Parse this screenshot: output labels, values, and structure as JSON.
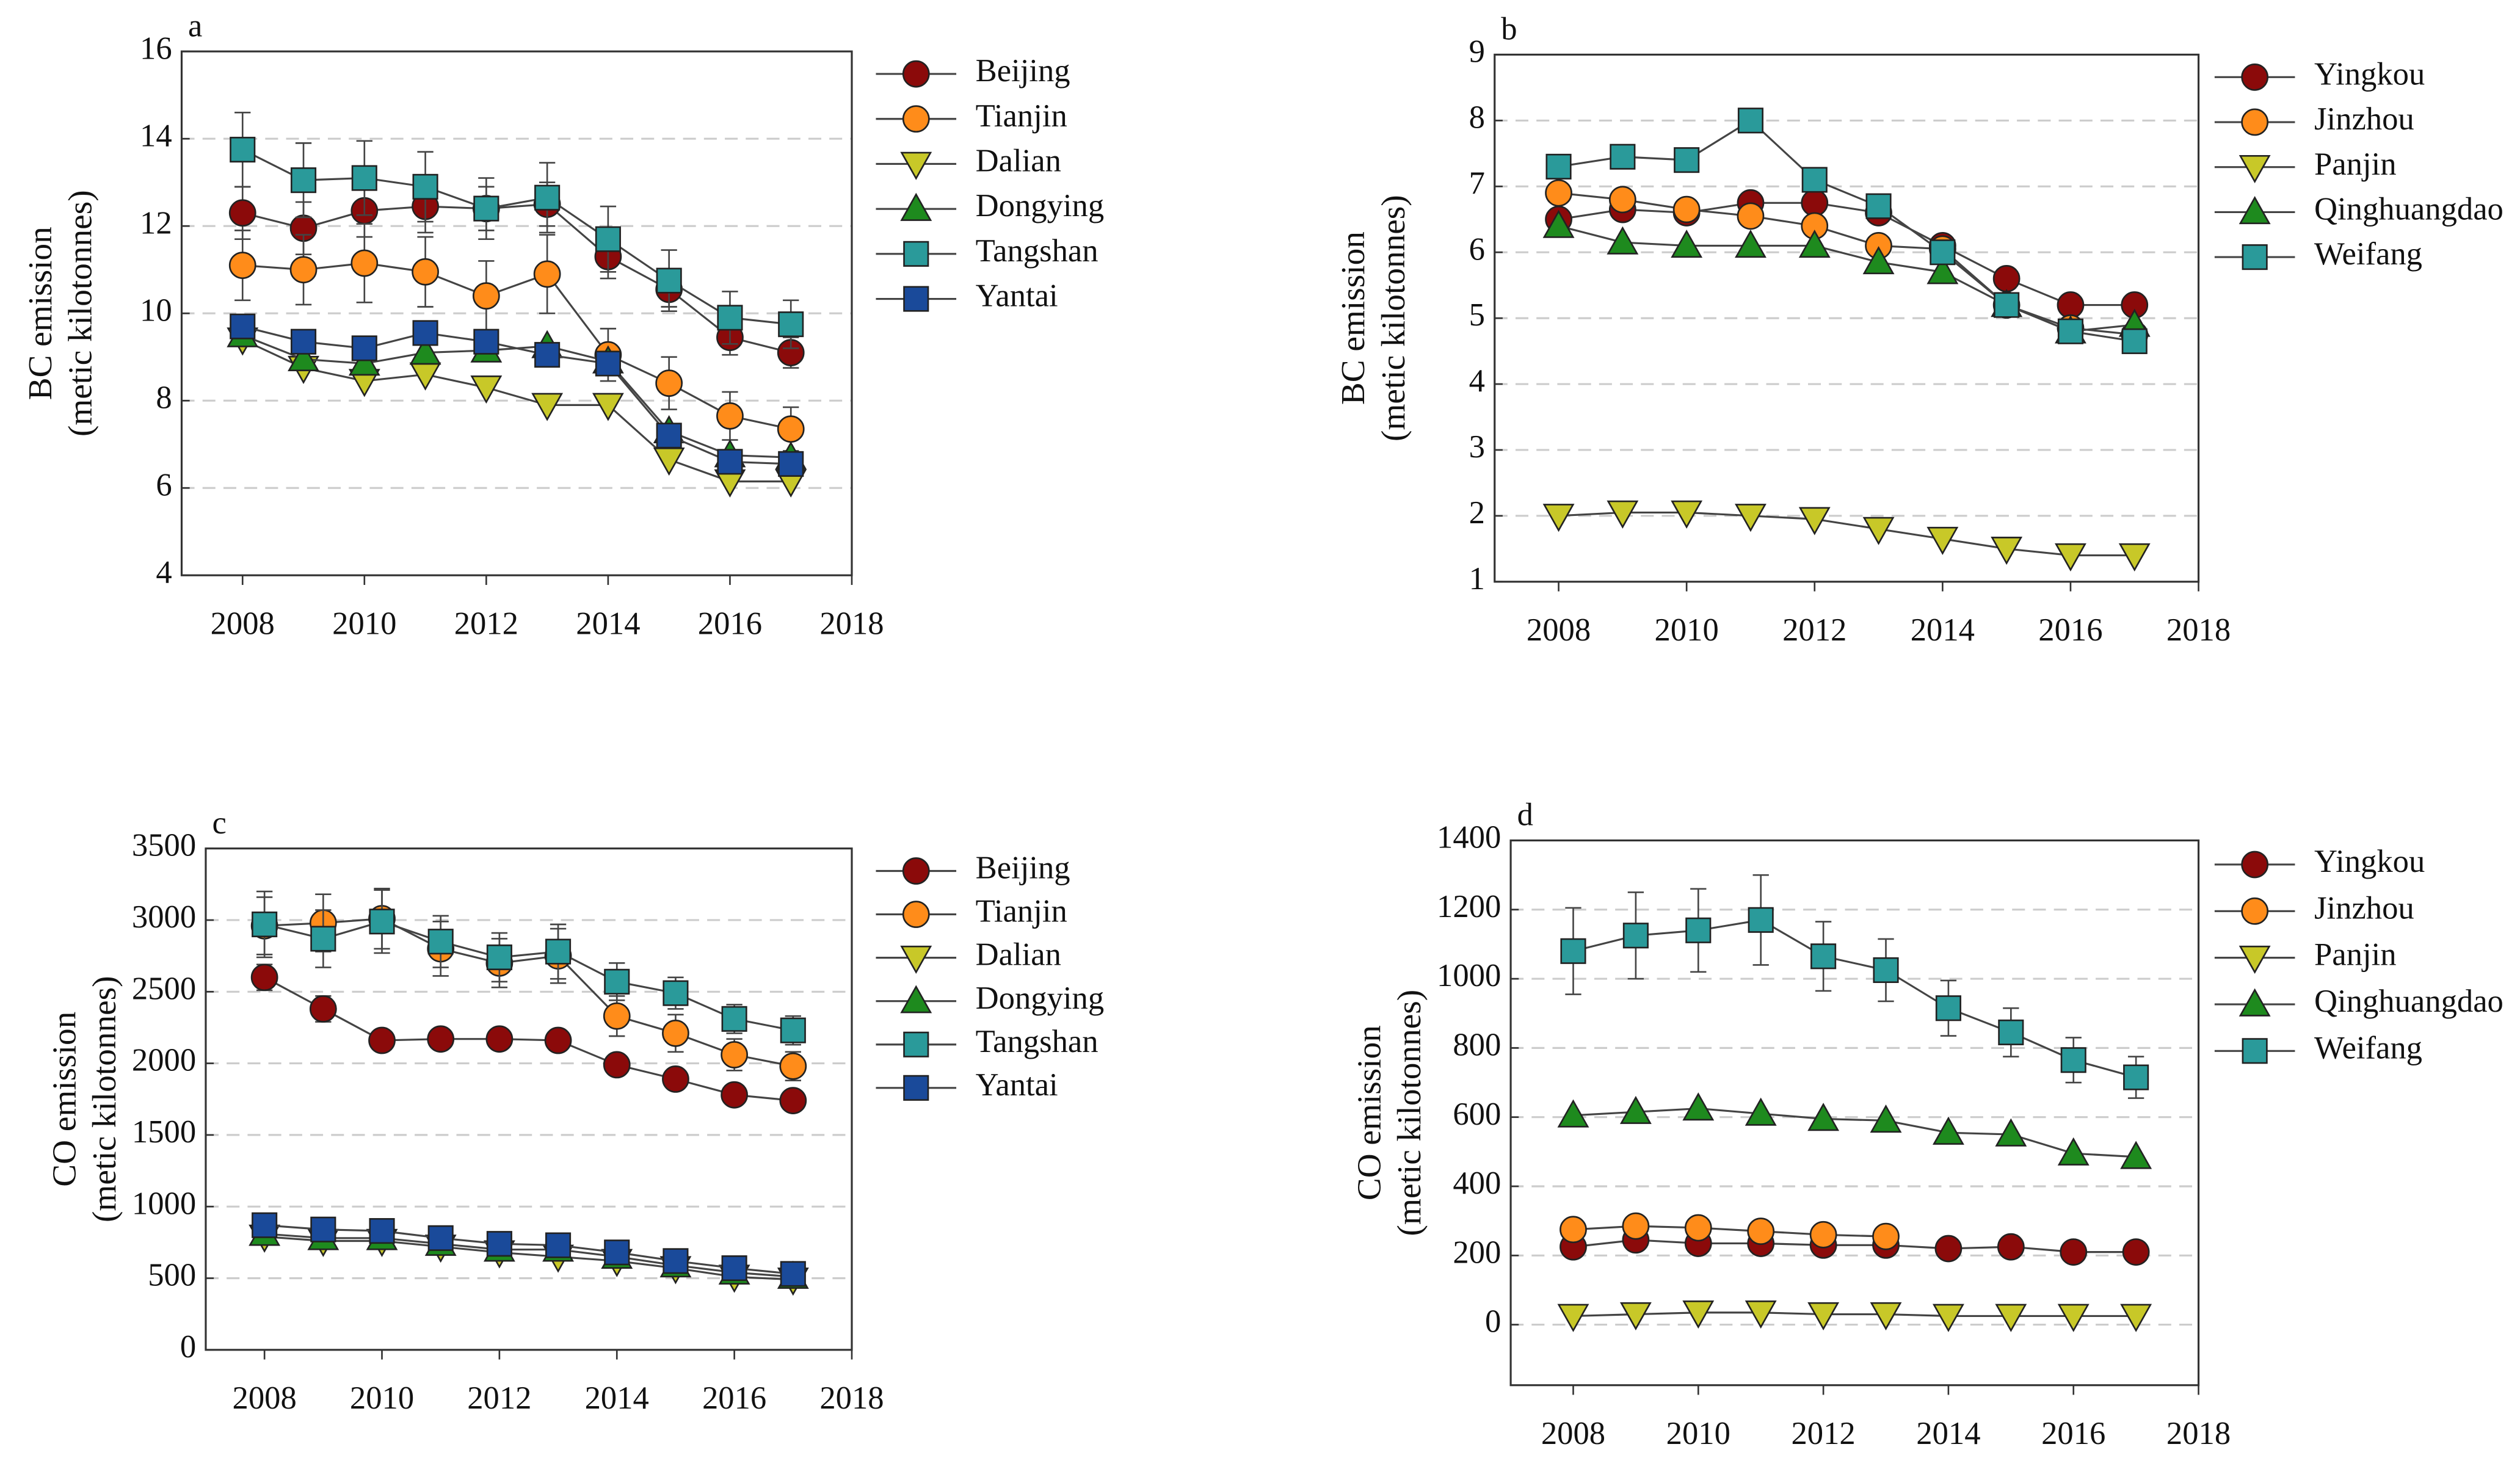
{
  "chart_data": [
    {
      "type": "line",
      "panel": "a",
      "ylabel": [
        "BC emission",
        "(metic kilotonnes)"
      ],
      "x": [
        2008,
        2009,
        2010,
        2011,
        2012,
        2013,
        2014,
        2015,
        2016,
        2017
      ],
      "xlim": [
        2007,
        2018
      ],
      "xticks": [
        2008,
        2010,
        2012,
        2014,
        2016,
        2018
      ],
      "ylim": [
        4,
        16
      ],
      "yticks": [
        4,
        6,
        8,
        10,
        12,
        14,
        16
      ],
      "grid": true,
      "legend": "right",
      "series": [
        {
          "name": "Beijing",
          "color": "#8b0a0a",
          "marker": "circle",
          "values": [
            12.3,
            11.95,
            12.35,
            12.45,
            12.4,
            12.5,
            11.3,
            10.55,
            9.45,
            9.1
          ],
          "errors": [
            0.6,
            0.6,
            0.6,
            0.6,
            0.5,
            0.5,
            0.5,
            0.4,
            0.4,
            0.35
          ]
        },
        {
          "name": "Tianjin",
          "color": "#ff8c1a",
          "marker": "circle",
          "values": [
            11.1,
            11.0,
            11.15,
            10.95,
            10.4,
            10.9,
            9.05,
            8.4,
            7.65,
            7.35
          ],
          "errors": [
            0.8,
            0.8,
            0.9,
            0.8,
            0.8,
            0.9,
            0.6,
            0.6,
            0.55,
            0.5
          ]
        },
        {
          "name": "Dalian",
          "color": "#c8c828",
          "marker": "tri-down",
          "values": [
            9.4,
            8.75,
            8.45,
            8.6,
            8.3,
            7.9,
            7.9,
            6.65,
            6.15,
            6.15
          ]
        },
        {
          "name": "Dongying",
          "color": "#1e8a1e",
          "marker": "tri-up",
          "values": [
            9.5,
            8.95,
            8.85,
            9.1,
            9.15,
            9.25,
            8.9,
            7.3,
            6.75,
            6.7
          ]
        },
        {
          "name": "Tangshan",
          "color": "#2a9a9a",
          "marker": "square",
          "values": [
            13.75,
            13.05,
            13.1,
            12.9,
            12.4,
            12.65,
            11.7,
            10.75,
            9.9,
            9.75
          ],
          "errors": [
            0.85,
            0.85,
            0.85,
            0.8,
            0.7,
            0.8,
            0.75,
            0.7,
            0.6,
            0.55
          ]
        },
        {
          "name": "Yantai",
          "color": "#1a4a9a",
          "marker": "square",
          "values": [
            9.7,
            9.35,
            9.2,
            9.55,
            9.35,
            9.05,
            8.85,
            7.2,
            6.6,
            6.55
          ]
        }
      ]
    },
    {
      "type": "line",
      "panel": "b",
      "ylabel": [
        "BC emission",
        "(metic kilotonnes)"
      ],
      "x": [
        2008,
        2009,
        2010,
        2011,
        2012,
        2013,
        2014,
        2015,
        2016,
        2017
      ],
      "xlim": [
        2007,
        2018
      ],
      "xticks": [
        2008,
        2010,
        2012,
        2014,
        2016,
        2018
      ],
      "ylim": [
        1,
        9
      ],
      "yticks": [
        1,
        2,
        3,
        4,
        5,
        6,
        7,
        8,
        9
      ],
      "grid": true,
      "legend": "right",
      "series": [
        {
          "name": "Yingkou",
          "color": "#8b0a0a",
          "marker": "circle",
          "values": [
            6.5,
            6.65,
            6.6,
            6.75,
            6.75,
            6.6,
            6.1,
            5.6,
            5.2,
            5.2
          ]
        },
        {
          "name": "Jinzhou",
          "color": "#ff8c1a",
          "marker": "circle",
          "values": [
            6.9,
            6.8,
            6.65,
            6.55,
            6.4,
            6.1,
            6.05,
            5.2,
            4.85,
            4.75
          ]
        },
        {
          "name": "Panjin",
          "color": "#c8c828",
          "marker": "tri-down",
          "values": [
            2.0,
            2.05,
            2.05,
            2.0,
            1.95,
            1.8,
            1.65,
            1.5,
            1.4,
            1.4
          ]
        },
        {
          "name": "Qinghuangdao",
          "color": "#1e8a1e",
          "marker": "tri-up",
          "values": [
            6.4,
            6.15,
            6.1,
            6.1,
            6.1,
            5.85,
            5.7,
            5.2,
            4.8,
            4.9
          ]
        },
        {
          "name": "Weifang",
          "color": "#2a9a9a",
          "marker": "square",
          "values": [
            7.3,
            7.45,
            7.4,
            8.0,
            7.1,
            6.7,
            6.0,
            5.2,
            4.8,
            4.65
          ]
        }
      ]
    },
    {
      "type": "line",
      "panel": "c",
      "ylabel": [
        "CO emission",
        "(metic kilotonnes)"
      ],
      "x": [
        2008,
        2009,
        2010,
        2011,
        2012,
        2013,
        2014,
        2015,
        2016,
        2017
      ],
      "xlim": [
        2007,
        2018
      ],
      "xticks": [
        2008,
        2010,
        2012,
        2014,
        2016,
        2018
      ],
      "ylim": [
        0,
        3500
      ],
      "yticks": [
        0,
        500,
        1000,
        1500,
        2000,
        2500,
        3000,
        3500
      ],
      "grid": true,
      "legend": "right",
      "series": [
        {
          "name": "Beijing",
          "color": "#8b0a0a",
          "marker": "circle",
          "values": [
            2600,
            2380,
            2160,
            2170,
            2170,
            2160,
            1990,
            1890,
            1780,
            1740
          ],
          "errors": [
            90,
            90,
            70,
            70,
            70,
            70,
            60,
            60,
            60,
            60
          ]
        },
        {
          "name": "Tianjin",
          "color": "#ff8c1a",
          "marker": "circle",
          "values": [
            2960,
            2980,
            3010,
            2800,
            2700,
            2750,
            2330,
            2210,
            2060,
            1980
          ],
          "errors": [
            200,
            200,
            210,
            190,
            170,
            190,
            140,
            130,
            110,
            100
          ]
        },
        {
          "name": "Dalian",
          "color": "#c8c828",
          "marker": "tri-down",
          "values": [
            790,
            760,
            760,
            720,
            680,
            650,
            620,
            570,
            510,
            490
          ]
        },
        {
          "name": "Dongying",
          "color": "#1e8a1e",
          "marker": "tri-up",
          "values": [
            810,
            780,
            780,
            740,
            700,
            700,
            650,
            590,
            540,
            510
          ]
        },
        {
          "name": "Tangshan",
          "color": "#2a9a9a",
          "marker": "square",
          "values": [
            2970,
            2870,
            2990,
            2850,
            2740,
            2780,
            2570,
            2490,
            2310,
            2230
          ],
          "errors": [
            230,
            200,
            220,
            180,
            170,
            190,
            130,
            110,
            100,
            100
          ]
        },
        {
          "name": "Yantai",
          "color": "#1a4a9a",
          "marker": "square",
          "values": [
            870,
            840,
            830,
            780,
            740,
            730,
            680,
            620,
            570,
            530
          ]
        }
      ]
    },
    {
      "type": "line",
      "panel": "d",
      "ylabel": [
        "CO emission",
        "(metic kilotonnes)"
      ],
      "x": [
        2008,
        2009,
        2010,
        2011,
        2012,
        2013,
        2014,
        2015,
        2016,
        2017
      ],
      "xlim": [
        2007,
        2018
      ],
      "xticks": [
        2008,
        2010,
        2012,
        2014,
        2016,
        2018
      ],
      "ylim": [
        -175,
        1400
      ],
      "yticks": [
        0,
        200,
        400,
        600,
        800,
        1000,
        1200,
        1400
      ],
      "grid": true,
      "legend": "right",
      "series": [
        {
          "name": "Yingkou",
          "color": "#8b0a0a",
          "marker": "circle",
          "values": [
            225,
            245,
            235,
            235,
            230,
            230,
            220,
            225,
            210,
            210
          ]
        },
        {
          "name": "Jinzhou",
          "color": "#ff8c1a",
          "marker": "circle",
          "values": [
            275,
            285,
            280,
            270,
            260,
            255,
            null,
            null,
            null,
            null
          ]
        },
        {
          "name": "Panjin",
          "color": "#c8c828",
          "marker": "tri-down",
          "values": [
            25,
            30,
            35,
            35,
            30,
            30,
            25,
            25,
            25,
            25
          ]
        },
        {
          "name": "Qinghuangdao",
          "color": "#1e8a1e",
          "marker": "tri-up",
          "values": [
            605,
            615,
            625,
            610,
            595,
            590,
            555,
            550,
            495,
            485
          ]
        },
        {
          "name": "Weifang",
          "color": "#2a9a9a",
          "marker": "square",
          "values": [
            1080,
            1125,
            1140,
            1170,
            1065,
            1025,
            915,
            845,
            765,
            715
          ],
          "errors": [
            125,
            125,
            120,
            130,
            100,
            90,
            80,
            70,
            65,
            60
          ]
        }
      ]
    }
  ]
}
